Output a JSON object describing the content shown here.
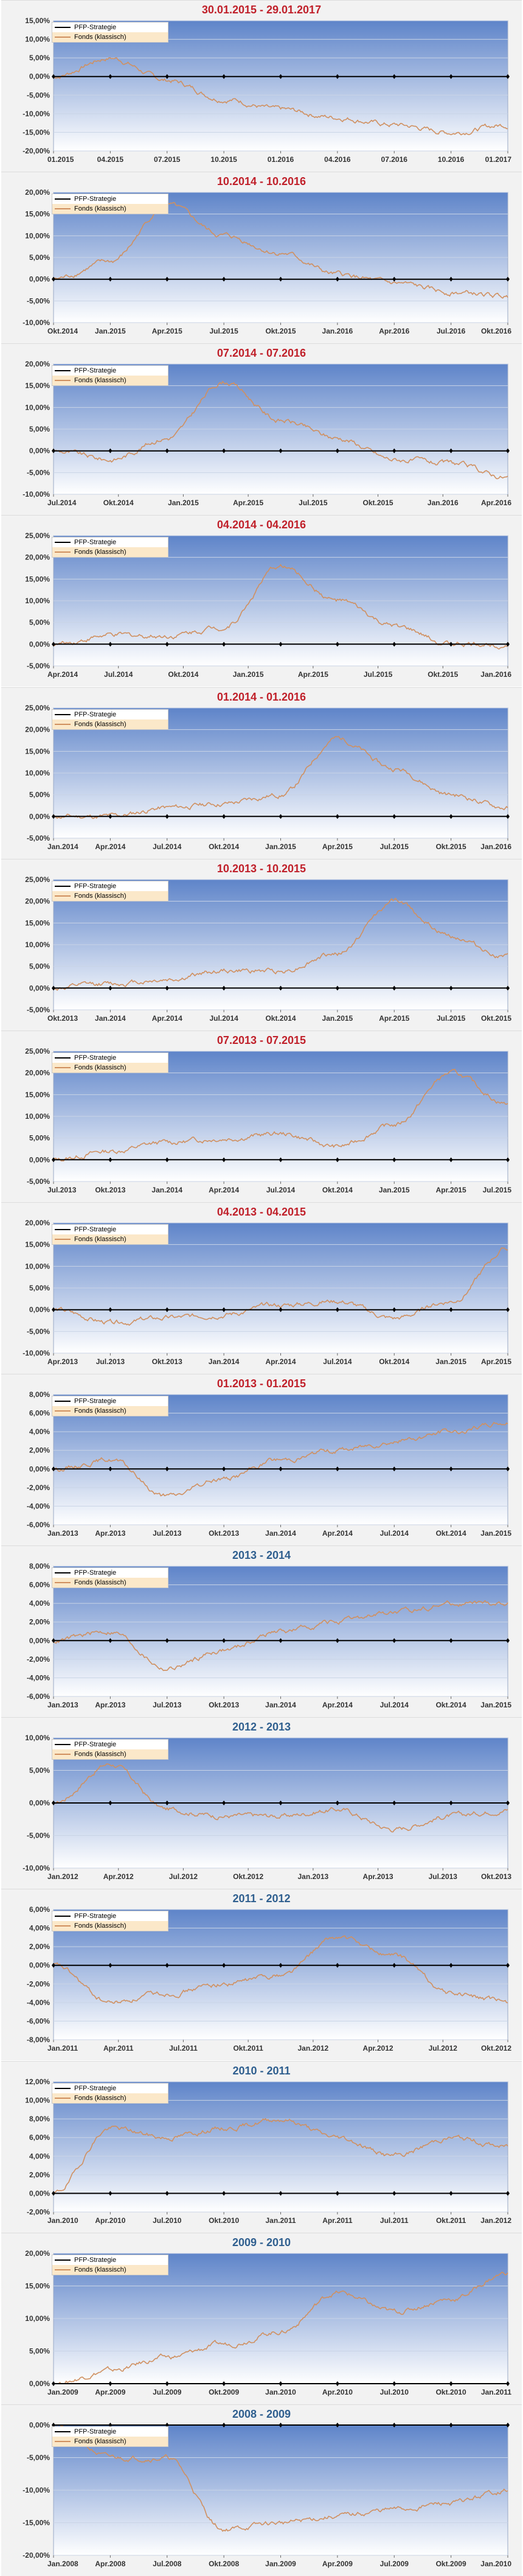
{
  "colors": {
    "title_red": "#c0202a",
    "title_blue": "#2f5f8f",
    "strategy_line": "#000000",
    "fund_line": "#d09060",
    "grid": "#c9d4e6",
    "plot_top": "#5e84c9",
    "plot_bottom": "#ffffff",
    "legend_fund_bg": "#fbe8c9"
  },
  "chart_data": [
    {
      "type": "line",
      "title": "30.01.2015 - 29.01.2017",
      "title_color": "red",
      "ylim": [
        -20,
        15
      ],
      "y_ticks": [
        "15,00%",
        "10,00%",
        "5,00%",
        "0,00%",
        "-5,00%",
        "-10,00%",
        "-15,00%",
        "-20,00%"
      ],
      "x_ticks": [
        "01.2015",
        "04.2015",
        "07.2015",
        "10.2015",
        "01.2016",
        "04.2016",
        "07.2016",
        "10.2016",
        "01.2017"
      ],
      "legend": [
        "PFP-Strategie",
        "Fonds (klassisch)"
      ],
      "series": [
        {
          "name": "PFP-Strategie",
          "values": [
            0,
            0,
            0,
            0,
            0,
            0,
            0,
            0,
            0
          ]
        },
        {
          "name": "Fonds (klassisch)",
          "values": [
            0,
            5,
            -1,
            -6,
            -9,
            -11,
            -13,
            -15,
            -13
          ]
        }
      ]
    },
    {
      "type": "line",
      "title": "10.2014 - 10.2016",
      "title_color": "red",
      "ylim": [
        -10,
        20
      ],
      "y_ticks": [
        "20,00%",
        "15,00%",
        "10,00%",
        "5,00%",
        "0,00%",
        "-5,00%",
        "-10,00%"
      ],
      "x_ticks": [
        "Okt.2014",
        "Jan.2015",
        "Apr.2015",
        "Jul.2015",
        "Okt.2015",
        "Jan.2016",
        "Apr.2016",
        "Jul.2016",
        "Okt.2016"
      ],
      "legend": [
        "PFP-Strategie",
        "Fonds (klassisch)"
      ],
      "series": [
        {
          "name": "PFP-Strategie",
          "values": [
            0,
            0,
            0,
            0,
            0,
            0,
            0,
            0,
            0
          ]
        },
        {
          "name": "Fonds (klassisch)",
          "values": [
            0,
            4,
            17,
            10,
            6,
            1,
            -1,
            -3,
            -4
          ]
        }
      ]
    },
    {
      "type": "line",
      "title": "07.2014 - 07.2016",
      "title_color": "red",
      "ylim": [
        -10,
        20
      ],
      "y_ticks": [
        "20,00%",
        "15,00%",
        "10,00%",
        "5,00%",
        "0,00%",
        "-5,00%",
        "-10,00%"
      ],
      "x_ticks": [
        "Jul.2014",
        "Okt.2014",
        "Jan.2015",
        "Apr.2015",
        "Jul.2015",
        "Okt.2015",
        "Jan.2016",
        "Apr.2016"
      ],
      "legend": [
        "PFP-Strategie",
        "Fonds (klassisch)"
      ],
      "series": [
        {
          "name": "PFP-Strategie",
          "values": [
            0,
            0,
            0,
            0,
            0,
            0,
            0,
            0,
            0
          ]
        },
        {
          "name": "Fonds (klassisch)",
          "values": [
            0,
            -2,
            3,
            16,
            7,
            3,
            -2,
            -3,
            -6
          ]
        }
      ]
    },
    {
      "type": "line",
      "title": "04.2014 - 04.2016",
      "title_color": "red",
      "ylim": [
        -5,
        25
      ],
      "y_ticks": [
        "25,00%",
        "20,00%",
        "15,00%",
        "10,00%",
        "5,00%",
        "0,00%",
        "-5,00%"
      ],
      "x_ticks": [
        "Apr.2014",
        "Jul.2014",
        "Okt.2014",
        "Jan.2015",
        "Apr.2015",
        "Jul.2015",
        "Okt.2015",
        "Jan.2016"
      ],
      "legend": [
        "PFP-Strategie",
        "Fonds (klassisch)"
      ],
      "series": [
        {
          "name": "PFP-Strategie",
          "values": [
            0,
            0,
            0,
            0,
            0,
            0,
            0,
            0,
            0
          ]
        },
        {
          "name": "Fonds (klassisch)",
          "values": [
            0,
            2,
            2,
            4,
            18,
            10,
            4,
            0,
            0
          ]
        }
      ]
    },
    {
      "type": "line",
      "title": "01.2014 - 01.2016",
      "title_color": "red",
      "ylim": [
        -5,
        25
      ],
      "y_ticks": [
        "25,00%",
        "20,00%",
        "15,00%",
        "10,00%",
        "5,00%",
        "0,00%",
        "-5,00%"
      ],
      "x_ticks": [
        "Jan.2014",
        "Apr.2014",
        "Jul.2014",
        "Okt.2014",
        "Jan.2015",
        "Apr.2015",
        "Jul.2015",
        "Okt.2015",
        "Jan.2016"
      ],
      "legend": [
        "PFP-Strategie",
        "Fonds (klassisch)"
      ],
      "series": [
        {
          "name": "PFP-Strategie",
          "values": [
            0,
            0,
            0,
            0,
            0,
            0,
            0,
            0,
            0
          ]
        },
        {
          "name": "Fonds (klassisch)",
          "values": [
            0,
            0,
            2,
            3,
            5,
            18,
            11,
            5,
            2
          ]
        }
      ]
    },
    {
      "type": "line",
      "title": "10.2013 - 10.2015",
      "title_color": "red",
      "ylim": [
        -5,
        25
      ],
      "y_ticks": [
        "25,00%",
        "20,00%",
        "15,00%",
        "10,00%",
        "5,00%",
        "0,00%",
        "-5,00%"
      ],
      "x_ticks": [
        "Okt.2013",
        "Jan.2014",
        "Apr.2014",
        "Jul.2014",
        "Okt.2014",
        "Jan.2015",
        "Apr.2015",
        "Jul.2015",
        "Okt.2015"
      ],
      "legend": [
        "PFP-Strategie",
        "Fonds (klassisch)"
      ],
      "series": [
        {
          "name": "PFP-Strategie",
          "values": [
            0,
            0,
            0,
            0,
            0,
            0,
            0,
            0,
            0
          ]
        },
        {
          "name": "Fonds (klassisch)",
          "values": [
            0,
            1,
            2,
            4,
            4,
            8,
            20,
            12,
            7
          ]
        }
      ]
    },
    {
      "type": "line",
      "title": "07.2013 - 07.2015",
      "title_color": "red",
      "ylim": [
        -5,
        25
      ],
      "y_ticks": [
        "25,00%",
        "20,00%",
        "15,00%",
        "10,00%",
        "5,00%",
        "0,00%",
        "-5,00%"
      ],
      "x_ticks": [
        "Jul.2013",
        "Okt.2013",
        "Jan.2014",
        "Apr.2014",
        "Jul.2014",
        "Okt.2014",
        "Jan.2015",
        "Apr.2015",
        "Jul.2015"
      ],
      "legend": [
        "PFP-Strategie",
        "Fonds (klassisch)"
      ],
      "series": [
        {
          "name": "PFP-Strategie",
          "values": [
            0,
            0,
            0,
            0,
            0,
            0,
            0,
            0,
            0
          ]
        },
        {
          "name": "Fonds (klassisch)",
          "values": [
            0,
            2,
            4,
            5,
            6,
            3,
            8,
            20,
            13
          ]
        }
      ]
    },
    {
      "type": "line",
      "title": "04.2013 - 04.2015",
      "title_color": "red",
      "ylim": [
        -10,
        20
      ],
      "y_ticks": [
        "20,00%",
        "15,00%",
        "10,00%",
        "5,00%",
        "0,00%",
        "-5,00%",
        "-10,00%"
      ],
      "x_ticks": [
        "Apr.2013",
        "Jul.2013",
        "Okt.2013",
        "Jan.2014",
        "Apr.2014",
        "Jul.2014",
        "Okt.2014",
        "Jan.2015",
        "Apr.2015"
      ],
      "legend": [
        "PFP-Strategie",
        "Fonds (klassisch)"
      ],
      "series": [
        {
          "name": "PFP-Strategie",
          "values": [
            0,
            0,
            0,
            0,
            0,
            0,
            0,
            0,
            0
          ]
        },
        {
          "name": "Fonds (klassisch)",
          "values": [
            0,
            -3,
            -2,
            -1,
            1,
            2,
            -2,
            2,
            14
          ]
        }
      ]
    },
    {
      "type": "line",
      "title": "01.2013 - 01.2015",
      "title_color": "red",
      "ylim": [
        -6,
        8
      ],
      "y_ticks": [
        "8,00%",
        "6,00%",
        "4,00%",
        "2,00%",
        "0,00%",
        "-2,00%",
        "-4,00%",
        "-6,00%"
      ],
      "x_ticks": [
        "Jan.2013",
        "Apr.2013",
        "Jul.2013",
        "Okt.2013",
        "Jan.2014",
        "Apr.2014",
        "Jul.2014",
        "Okt.2014",
        "Jan.2015"
      ],
      "legend": [
        "PFP-Strategie",
        "Fonds (klassisch)"
      ],
      "series": [
        {
          "name": "PFP-Strategie",
          "values": [
            0,
            0,
            0,
            0,
            0,
            0,
            0,
            0,
            0
          ]
        },
        {
          "name": "Fonds (klassisch)",
          "values": [
            0,
            1,
            -3,
            -1,
            1,
            2,
            3,
            4,
            5
          ]
        }
      ]
    },
    {
      "type": "line",
      "title": "2013 - 2014",
      "title_color": "blue",
      "ylim": [
        -6,
        8
      ],
      "y_ticks": [
        "8,00%",
        "6,00%",
        "4,00%",
        "2,00%",
        "0,00%",
        "-2,00%",
        "-4,00%",
        "-6,00%"
      ],
      "x_ticks": [
        "Jan.2013",
        "Apr.2013",
        "Jul.2013",
        "Okt.2013",
        "Jan.2014",
        "Apr.2014",
        "Jul.2014",
        "Okt.2014",
        "Jan.2015"
      ],
      "legend": [
        "PFP-Strategie",
        "Fonds (klassisch)"
      ],
      "series": [
        {
          "name": "PFP-Strategie",
          "values": [
            0,
            0,
            0,
            0,
            0,
            0,
            0,
            0,
            0
          ]
        },
        {
          "name": "Fonds (klassisch)",
          "values": [
            0,
            1,
            -3,
            -1,
            1,
            2,
            3,
            4,
            4
          ]
        }
      ]
    },
    {
      "type": "line",
      "title": "2012 - 2013",
      "title_color": "blue",
      "ylim": [
        -10,
        10
      ],
      "y_ticks": [
        "10,00%",
        "5,00%",
        "0,00%",
        "-5,00%",
        "-10,00%"
      ],
      "x_ticks": [
        "Jan.2012",
        "Apr.2012",
        "Jul.2012",
        "Okt.2012",
        "Jan.2013",
        "Apr.2013",
        "Jul.2013",
        "Okt.2013"
      ],
      "legend": [
        "PFP-Strategie",
        "Fonds (klassisch)"
      ],
      "series": [
        {
          "name": "PFP-Strategie",
          "values": [
            0,
            0,
            0,
            0,
            0,
            0,
            0,
            0,
            0
          ]
        },
        {
          "name": "Fonds (klassisch)",
          "values": [
            0,
            6,
            -1,
            -2,
            -2,
            -1,
            -4,
            -2,
            -1
          ]
        }
      ]
    },
    {
      "type": "line",
      "title": "2011 - 2012",
      "title_color": "blue",
      "ylim": [
        -8,
        6
      ],
      "y_ticks": [
        "6,00%",
        "4,00%",
        "2,00%",
        "0,00%",
        "-2,00%",
        "-4,00%",
        "-6,00%",
        "-8,00%"
      ],
      "x_ticks": [
        "Jan.2011",
        "Apr.2011",
        "Jul.2011",
        "Okt.2011",
        "Jan.2012",
        "Apr.2012",
        "Jul.2012",
        "Okt.2012"
      ],
      "legend": [
        "PFP-Strategie",
        "Fonds (klassisch)"
      ],
      "series": [
        {
          "name": "PFP-Strategie",
          "values": [
            0,
            0,
            0,
            0,
            0,
            0,
            0,
            0,
            0
          ]
        },
        {
          "name": "Fonds (klassisch)",
          "values": [
            0,
            -4,
            -3,
            -2,
            -1,
            3,
            1,
            -3,
            -4
          ]
        }
      ]
    },
    {
      "type": "line",
      "title": "2010 - 2011",
      "title_color": "blue",
      "ylim": [
        -2,
        12
      ],
      "y_ticks": [
        "12,00%",
        "10,00%",
        "8,00%",
        "6,00%",
        "4,00%",
        "2,00%",
        "0,00%",
        "-2,00%"
      ],
      "x_ticks": [
        "Jan.2010",
        "Apr.2010",
        "Jul.2010",
        "Okt.2010",
        "Jan.2011",
        "Apr.2011",
        "Jul.2011",
        "Okt.2011",
        "Jan.2012"
      ],
      "legend": [
        "PFP-Strategie",
        "Fonds (klassisch)"
      ],
      "series": [
        {
          "name": "PFP-Strategie",
          "values": [
            0,
            0,
            0,
            0,
            0,
            0,
            0,
            0,
            0
          ]
        },
        {
          "name": "Fonds (klassisch)",
          "values": [
            0,
            7,
            6,
            7,
            8,
            6,
            4,
            6,
            5
          ]
        }
      ]
    },
    {
      "type": "line",
      "title": "2009 - 2010",
      "title_color": "blue",
      "ylim": [
        0,
        20
      ],
      "y_ticks": [
        "20,00%",
        "15,00%",
        "10,00%",
        "5,00%",
        "0,00%"
      ],
      "x_ticks": [
        "Jan.2009",
        "Apr.2009",
        "Jul.2009",
        "Okt.2009",
        "Jan.2010",
        "Apr.2010",
        "Jul.2010",
        "Okt.2010",
        "Jan.2011"
      ],
      "legend": [
        "PFP-Strategie",
        "Fonds (klassisch)"
      ],
      "series": [
        {
          "name": "PFP-Strategie",
          "values": [
            0,
            0,
            0,
            0,
            0,
            0,
            0,
            0,
            0
          ]
        },
        {
          "name": "Fonds (klassisch)",
          "values": [
            0,
            2,
            4,
            6,
            8,
            14,
            11,
            13,
            17
          ]
        }
      ]
    },
    {
      "type": "line",
      "title": "2008 - 2009",
      "title_color": "blue",
      "ylim": [
        -20,
        0
      ],
      "y_ticks": [
        "0,00%",
        "-5,00%",
        "-10,00%",
        "-15,00%",
        "-20,00%"
      ],
      "x_ticks": [
        "Jan.2008",
        "Apr.2008",
        "Jul.2008",
        "Okt.2008",
        "Jan.2009",
        "Apr.2009",
        "Jul.2009",
        "Okt.2009",
        "Jan.2010"
      ],
      "legend": [
        "PFP-Strategie",
        "Fonds (klassisch)"
      ],
      "series": [
        {
          "name": "PFP-Strategie",
          "values": [
            0,
            0,
            0,
            0,
            0,
            0,
            0,
            0,
            0
          ]
        },
        {
          "name": "Fonds (klassisch)",
          "values": [
            0,
            -5,
            -5,
            -16,
            -15,
            -14,
            -13,
            -12,
            -10
          ]
        }
      ]
    }
  ]
}
